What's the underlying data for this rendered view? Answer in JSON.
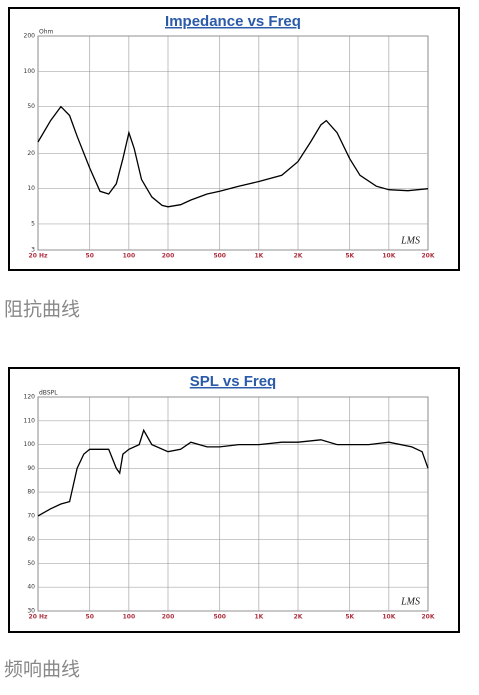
{
  "chart_data": [
    {
      "type": "line",
      "title": "Impedance vs Freq",
      "y_label": "Ohm",
      "logo": "LMS",
      "caption": "阻抗曲线",
      "xlog": true,
      "ylog": true,
      "grid": true,
      "color": "#000000",
      "xlim": [
        20,
        20000
      ],
      "ylim": [
        3,
        200
      ],
      "xticks": [
        {
          "value": 20,
          "label": "20 Hz"
        },
        50,
        100,
        200,
        500,
        {
          "value": 1000,
          "label": "1K"
        },
        {
          "value": 2000,
          "label": "2K"
        },
        {
          "value": 5000,
          "label": "5K"
        },
        {
          "value": 10000,
          "label": "10K"
        },
        {
          "value": 20000,
          "label": "20K"
        }
      ],
      "yticks": [
        3,
        5,
        10,
        20,
        50,
        100,
        200
      ],
      "x": [
        20,
        25,
        30,
        35,
        40,
        50,
        60,
        70,
        80,
        90,
        100,
        110,
        125,
        150,
        180,
        200,
        250,
        300,
        400,
        500,
        700,
        1000,
        1500,
        2000,
        2500,
        3000,
        3300,
        4000,
        5000,
        6000,
        8000,
        10000,
        14000,
        20000
      ],
      "values": [
        25,
        38,
        50,
        42,
        28,
        15,
        9.5,
        9,
        11,
        18,
        30,
        22,
        12,
        8.5,
        7.2,
        7,
        7.3,
        8,
        9,
        9.5,
        10.5,
        11.5,
        13,
        17,
        25,
        35,
        38,
        30,
        18,
        13,
        10.5,
        9.8,
        9.6,
        10
      ]
    },
    {
      "type": "line",
      "title": "SPL vs Freq",
      "y_label": "dBSPL",
      "logo": "LMS",
      "caption": "频响曲线",
      "xlog": true,
      "ylog": false,
      "grid": true,
      "color": "#000000",
      "xlim": [
        20,
        20000
      ],
      "ylim": [
        30,
        120
      ],
      "xticks": [
        {
          "value": 20,
          "label": "20 Hz"
        },
        50,
        100,
        200,
        500,
        {
          "value": 1000,
          "label": "1K"
        },
        {
          "value": 2000,
          "label": "2K"
        },
        {
          "value": 5000,
          "label": "5K"
        },
        {
          "value": 10000,
          "label": "10K"
        },
        {
          "value": 20000,
          "label": "20K"
        }
      ],
      "yticks": [
        30,
        40,
        50,
        60,
        70,
        80,
        90,
        100,
        110,
        120
      ],
      "x": [
        20,
        25,
        30,
        35,
        40,
        45,
        50,
        60,
        70,
        80,
        85,
        90,
        100,
        120,
        130,
        150,
        200,
        250,
        300,
        400,
        500,
        700,
        1000,
        1500,
        2000,
        3000,
        4000,
        5000,
        7000,
        10000,
        15000,
        18000,
        20000
      ],
      "values": [
        70,
        73,
        75,
        76,
        90,
        96,
        98,
        98,
        98,
        90,
        88,
        96,
        98,
        100,
        106,
        100,
        97,
        98,
        101,
        99,
        99,
        100,
        100,
        101,
        101,
        102,
        100,
        100,
        100,
        101,
        99,
        97,
        90
      ]
    }
  ]
}
